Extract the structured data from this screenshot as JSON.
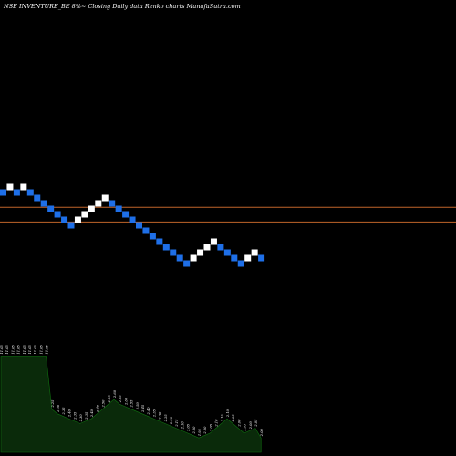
{
  "chart_data": {
    "type": "renko",
    "title": "NSE INVENTURE_BE 8%~  Closing Daily data  Renko  charts MunafaSutra.com",
    "colors": {
      "background": "#000000",
      "up_brick": "#ffffff",
      "down_brick": "#1e6fe8",
      "reference_line": "#c0642a",
      "volume_fill": "#0a2a0a",
      "volume_edge": "#0f6f0f",
      "text": "#ffffff"
    },
    "bricks": [
      {
        "level": 13,
        "dir": "down"
      },
      {
        "level": 14,
        "dir": "up"
      },
      {
        "level": 13,
        "dir": "down"
      },
      {
        "level": 14,
        "dir": "up"
      },
      {
        "level": 13,
        "dir": "down"
      },
      {
        "level": 12,
        "dir": "down"
      },
      {
        "level": 11,
        "dir": "down"
      },
      {
        "level": 10,
        "dir": "down"
      },
      {
        "level": 9,
        "dir": "down"
      },
      {
        "level": 8,
        "dir": "down"
      },
      {
        "level": 7,
        "dir": "down"
      },
      {
        "level": 8,
        "dir": "up"
      },
      {
        "level": 9,
        "dir": "up"
      },
      {
        "level": 10,
        "dir": "up"
      },
      {
        "level": 11,
        "dir": "up"
      },
      {
        "level": 12,
        "dir": "up"
      },
      {
        "level": 11,
        "dir": "down"
      },
      {
        "level": 10,
        "dir": "down"
      },
      {
        "level": 9,
        "dir": "down"
      },
      {
        "level": 8,
        "dir": "down"
      },
      {
        "level": 7,
        "dir": "down"
      },
      {
        "level": 6,
        "dir": "down"
      },
      {
        "level": 5,
        "dir": "down"
      },
      {
        "level": 4,
        "dir": "down"
      },
      {
        "level": 3,
        "dir": "down"
      },
      {
        "level": 2,
        "dir": "down"
      },
      {
        "level": 1,
        "dir": "down"
      },
      {
        "level": 0,
        "dir": "down"
      },
      {
        "level": 1,
        "dir": "up"
      },
      {
        "level": 2,
        "dir": "up"
      },
      {
        "level": 3,
        "dir": "up"
      },
      {
        "level": 4,
        "dir": "up"
      },
      {
        "level": 3,
        "dir": "down"
      },
      {
        "level": 2,
        "dir": "down"
      },
      {
        "level": 1,
        "dir": "down"
      },
      {
        "level": 0,
        "dir": "down"
      },
      {
        "level": 1,
        "dir": "up"
      },
      {
        "level": 2,
        "dir": "up"
      },
      {
        "level": 1,
        "dir": "down"
      }
    ],
    "reference_levels": [
      10.3,
      7.6
    ],
    "volume_labels": [
      "11.05",
      "11.05",
      "11.05",
      "11.05",
      "11.05",
      "11.05",
      "11.05",
      "11.05",
      "11.05",
      "2.25",
      "2.30",
      "2.35",
      "2.40",
      "2.35",
      "2.30",
      "2.35",
      "2.40",
      "2.45",
      "2.50",
      "2.55",
      "2.60",
      "2.65",
      "2.60",
      "2.55",
      "2.50",
      "2.45",
      "2.40",
      "2.35",
      "2.30",
      "2.25",
      "2.20",
      "2.15",
      "2.10",
      "2.05",
      "2.00",
      "1.95",
      "2.00",
      "2.05",
      "2.10",
      "2.15",
      "2.10",
      "2.05",
      "2.00",
      "1.95",
      "2.00",
      "2.05",
      "2.00"
    ],
    "volume_values": [
      20,
      20,
      20,
      20,
      20,
      20,
      20,
      20,
      20,
      9,
      8,
      7.5,
      7,
      6.5,
      6,
      6.5,
      7,
      8,
      9,
      10,
      11,
      10,
      9.5,
      9,
      8.5,
      8,
      7.5,
      7,
      6.5,
      6,
      5.5,
      5,
      4.5,
      4,
      3.5,
      3,
      3.5,
      4,
      5,
      6,
      7,
      6,
      5,
      4,
      4.5,
      5,
      3
    ],
    "volume_ylim": [
      0,
      22
    ]
  }
}
